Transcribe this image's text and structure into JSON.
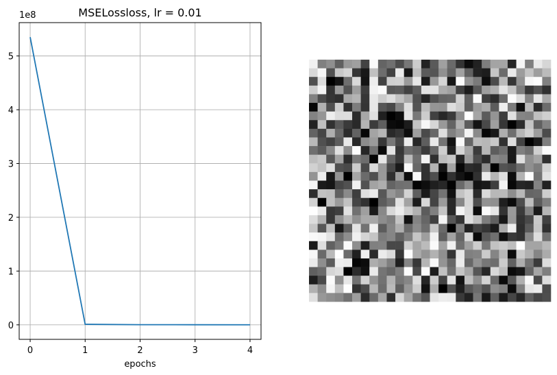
{
  "chart_data": [
    {
      "type": "line",
      "title": "MSELossloss, lr = 0.01",
      "xlabel": "epochs",
      "ylabel": "",
      "y_scale_label": "1e8",
      "x": [
        0,
        1,
        2,
        3,
        4
      ],
      "series": [
        {
          "values": [
            535000000,
            1000000,
            300000,
            150000,
            80000
          ],
          "color": "#1f77b4"
        }
      ],
      "xlim": [
        -0.2,
        4.2
      ],
      "ylim": [
        -27000000,
        562000000
      ],
      "x_ticks": [
        0,
        1,
        2,
        3,
        4
      ],
      "x_tick_labels": [
        "0",
        "1",
        "2",
        "3",
        "4"
      ],
      "y_ticks": [
        0,
        100000000,
        200000000,
        300000000,
        400000000,
        500000000
      ],
      "y_tick_labels": [
        "0",
        "1",
        "2",
        "3",
        "4",
        "5"
      ],
      "grid": true,
      "legend": "none"
    },
    {
      "type": "heatmap",
      "colormap": "gray",
      "description_values_range": [
        0,
        1
      ],
      "grid": false,
      "axes": "off"
    }
  ]
}
